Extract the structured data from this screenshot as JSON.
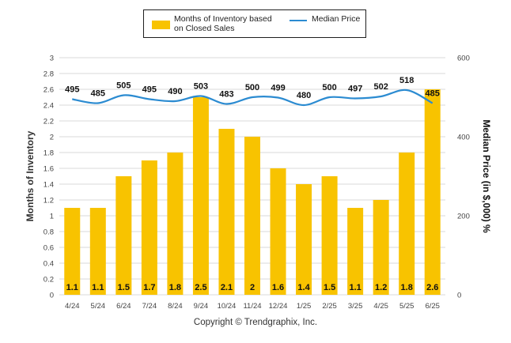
{
  "legend": {
    "bar_label": "Months of Inventory based on Closed Sales",
    "line_label": "Median Price"
  },
  "copyright": "Copyright © Trendgraphix, Inc.",
  "colors": {
    "bar": "#f8c300",
    "line": "#2b8bd1",
    "grid": "#d9d9d9"
  },
  "chart_data": {
    "type": "bar",
    "categories": [
      "4/24",
      "5/24",
      "6/24",
      "7/24",
      "8/24",
      "9/24",
      "10/24",
      "11/24",
      "12/24",
      "1/25",
      "2/25",
      "3/25",
      "4/25",
      "5/25",
      "6/25"
    ],
    "series": [
      {
        "name": "Months of Inventory based on Closed Sales",
        "type": "bar",
        "axis": "left",
        "values": [
          1.1,
          1.1,
          1.5,
          1.7,
          1.8,
          2.5,
          2.1,
          2,
          1.6,
          1.4,
          1.5,
          1.1,
          1.2,
          1.8,
          2.6
        ],
        "labels": [
          "1.1",
          "1.1",
          "1.5",
          "1.7",
          "1.8",
          "2.5",
          "2.1",
          "2",
          "1.6",
          "1.4",
          "1.5",
          "1.1",
          "1.2",
          "1.8",
          "2.6"
        ]
      },
      {
        "name": "Median Price",
        "type": "line",
        "axis": "right",
        "values": [
          495,
          485,
          505,
          495,
          490,
          503,
          483,
          500,
          499,
          480,
          500,
          497,
          502,
          518,
          485
        ],
        "labels": [
          "495",
          "485",
          "505",
          "495",
          "490",
          "503",
          "483",
          "500",
          "499",
          "480",
          "500",
          "497",
          "502",
          "518",
          "485"
        ]
      }
    ],
    "ylabel": "Months of Inventory",
    "y2label": "Median Price (in $,000) %",
    "ylim": [
      0,
      3
    ],
    "y2lim": [
      0,
      600
    ],
    "yticks": [
      "0",
      "0.2",
      "0.4",
      "0.6",
      "0.8",
      "1",
      "1.2",
      "1.4",
      "1.6",
      "1.8",
      "2",
      "2.2",
      "2.4",
      "2.6",
      "2.8",
      "3"
    ],
    "y2ticks": [
      "0",
      "200",
      "400",
      "600"
    ],
    "grid": true,
    "legend_position": "top"
  }
}
